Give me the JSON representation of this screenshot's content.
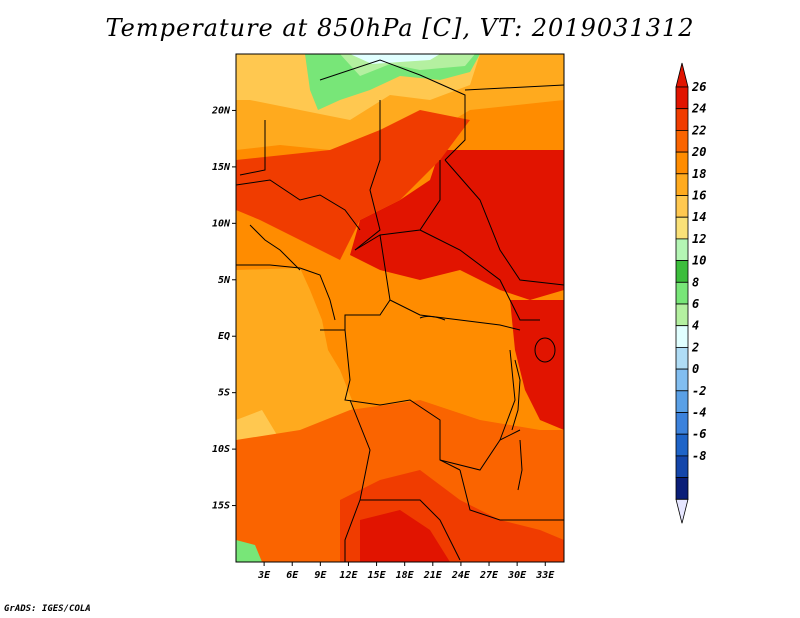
{
  "title": "Temperature at 850hPa [C], VT: 2019031312",
  "credit": "GrADS: IGES/COLA",
  "map": {
    "lon_labels": [
      "3E",
      "6E",
      "9E",
      "12E",
      "15E",
      "18E",
      "21E",
      "24E",
      "27E",
      "30E",
      "33E"
    ],
    "lon_values": [
      3,
      6,
      9,
      12,
      15,
      18,
      21,
      24,
      27,
      30,
      33
    ],
    "lat_labels": [
      "20N",
      "15N",
      "10N",
      "5N",
      "EQ",
      "5S",
      "10S",
      "15S"
    ],
    "lat_values": [
      20,
      15,
      10,
      5,
      0,
      -5,
      -10,
      -15
    ],
    "lon_range": [
      0,
      35
    ],
    "lat_range": [
      -20,
      25
    ]
  },
  "colorbar": {
    "labels": [
      "26",
      "24",
      "22",
      "20",
      "18",
      "16",
      "14",
      "12",
      "10",
      "8",
      "6",
      "4",
      "2",
      "0",
      "-2",
      "-4",
      "-6",
      "-8"
    ],
    "colors": [
      "#e11400",
      "#f03c00",
      "#fa6400",
      "#ff8c00",
      "#ffaa1e",
      "#ffc850",
      "#fae178",
      "#b4f5b4",
      "#3cbe3c",
      "#78e678",
      "#b4f0a0",
      "#e1ffff",
      "#afdcf5",
      "#82bef0",
      "#5aa0e6",
      "#3c82dc",
      "#1e64c8",
      "#1446aa",
      "#0a1e78"
    ],
    "top_color": "#e11400",
    "bottom_color": "#e6e6ff"
  },
  "colors": {
    "border": "#000000",
    "ocean": "#ffc35a"
  }
}
